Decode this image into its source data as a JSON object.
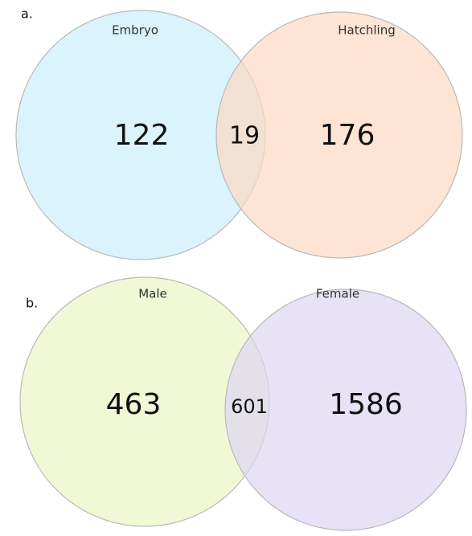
{
  "panels": [
    {
      "label": "a.",
      "sets": [
        "Embryo",
        "Hatchling"
      ],
      "counts": {
        "left": 122,
        "overlap": 19,
        "right": 176
      }
    },
    {
      "label": "b.",
      "sets": [
        "Male",
        "Female"
      ],
      "counts": {
        "left": 463,
        "overlap": 601,
        "right": 1586
      }
    }
  ]
}
